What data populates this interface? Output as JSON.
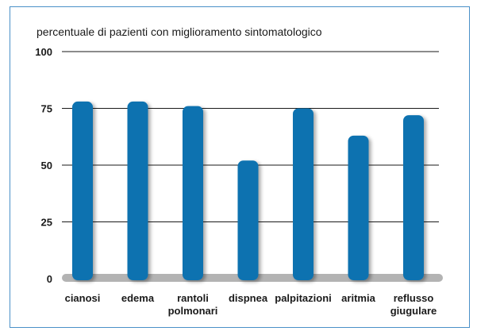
{
  "chart_data": {
    "type": "bar",
    "title": "percentuale di pazienti con miglioramento sintomatologico",
    "xlabel": "",
    "ylabel": "",
    "ylim": [
      0,
      100
    ],
    "yticks": [
      "0",
      "25",
      "50",
      "75",
      "100"
    ],
    "grid": true,
    "categories": [
      [
        "cianosi"
      ],
      [
        "edema"
      ],
      [
        "rantoli",
        "polmonari"
      ],
      [
        "dispnea"
      ],
      [
        "palpitazioni"
      ],
      [
        "aritmia"
      ],
      [
        "reflusso",
        "giugulare"
      ]
    ],
    "values": [
      78,
      78,
      76,
      52,
      75,
      63,
      72
    ],
    "colors": {
      "bar": "#0a72b0",
      "baseline": "#b3b3b3",
      "frame": "#4a90c8"
    }
  }
}
